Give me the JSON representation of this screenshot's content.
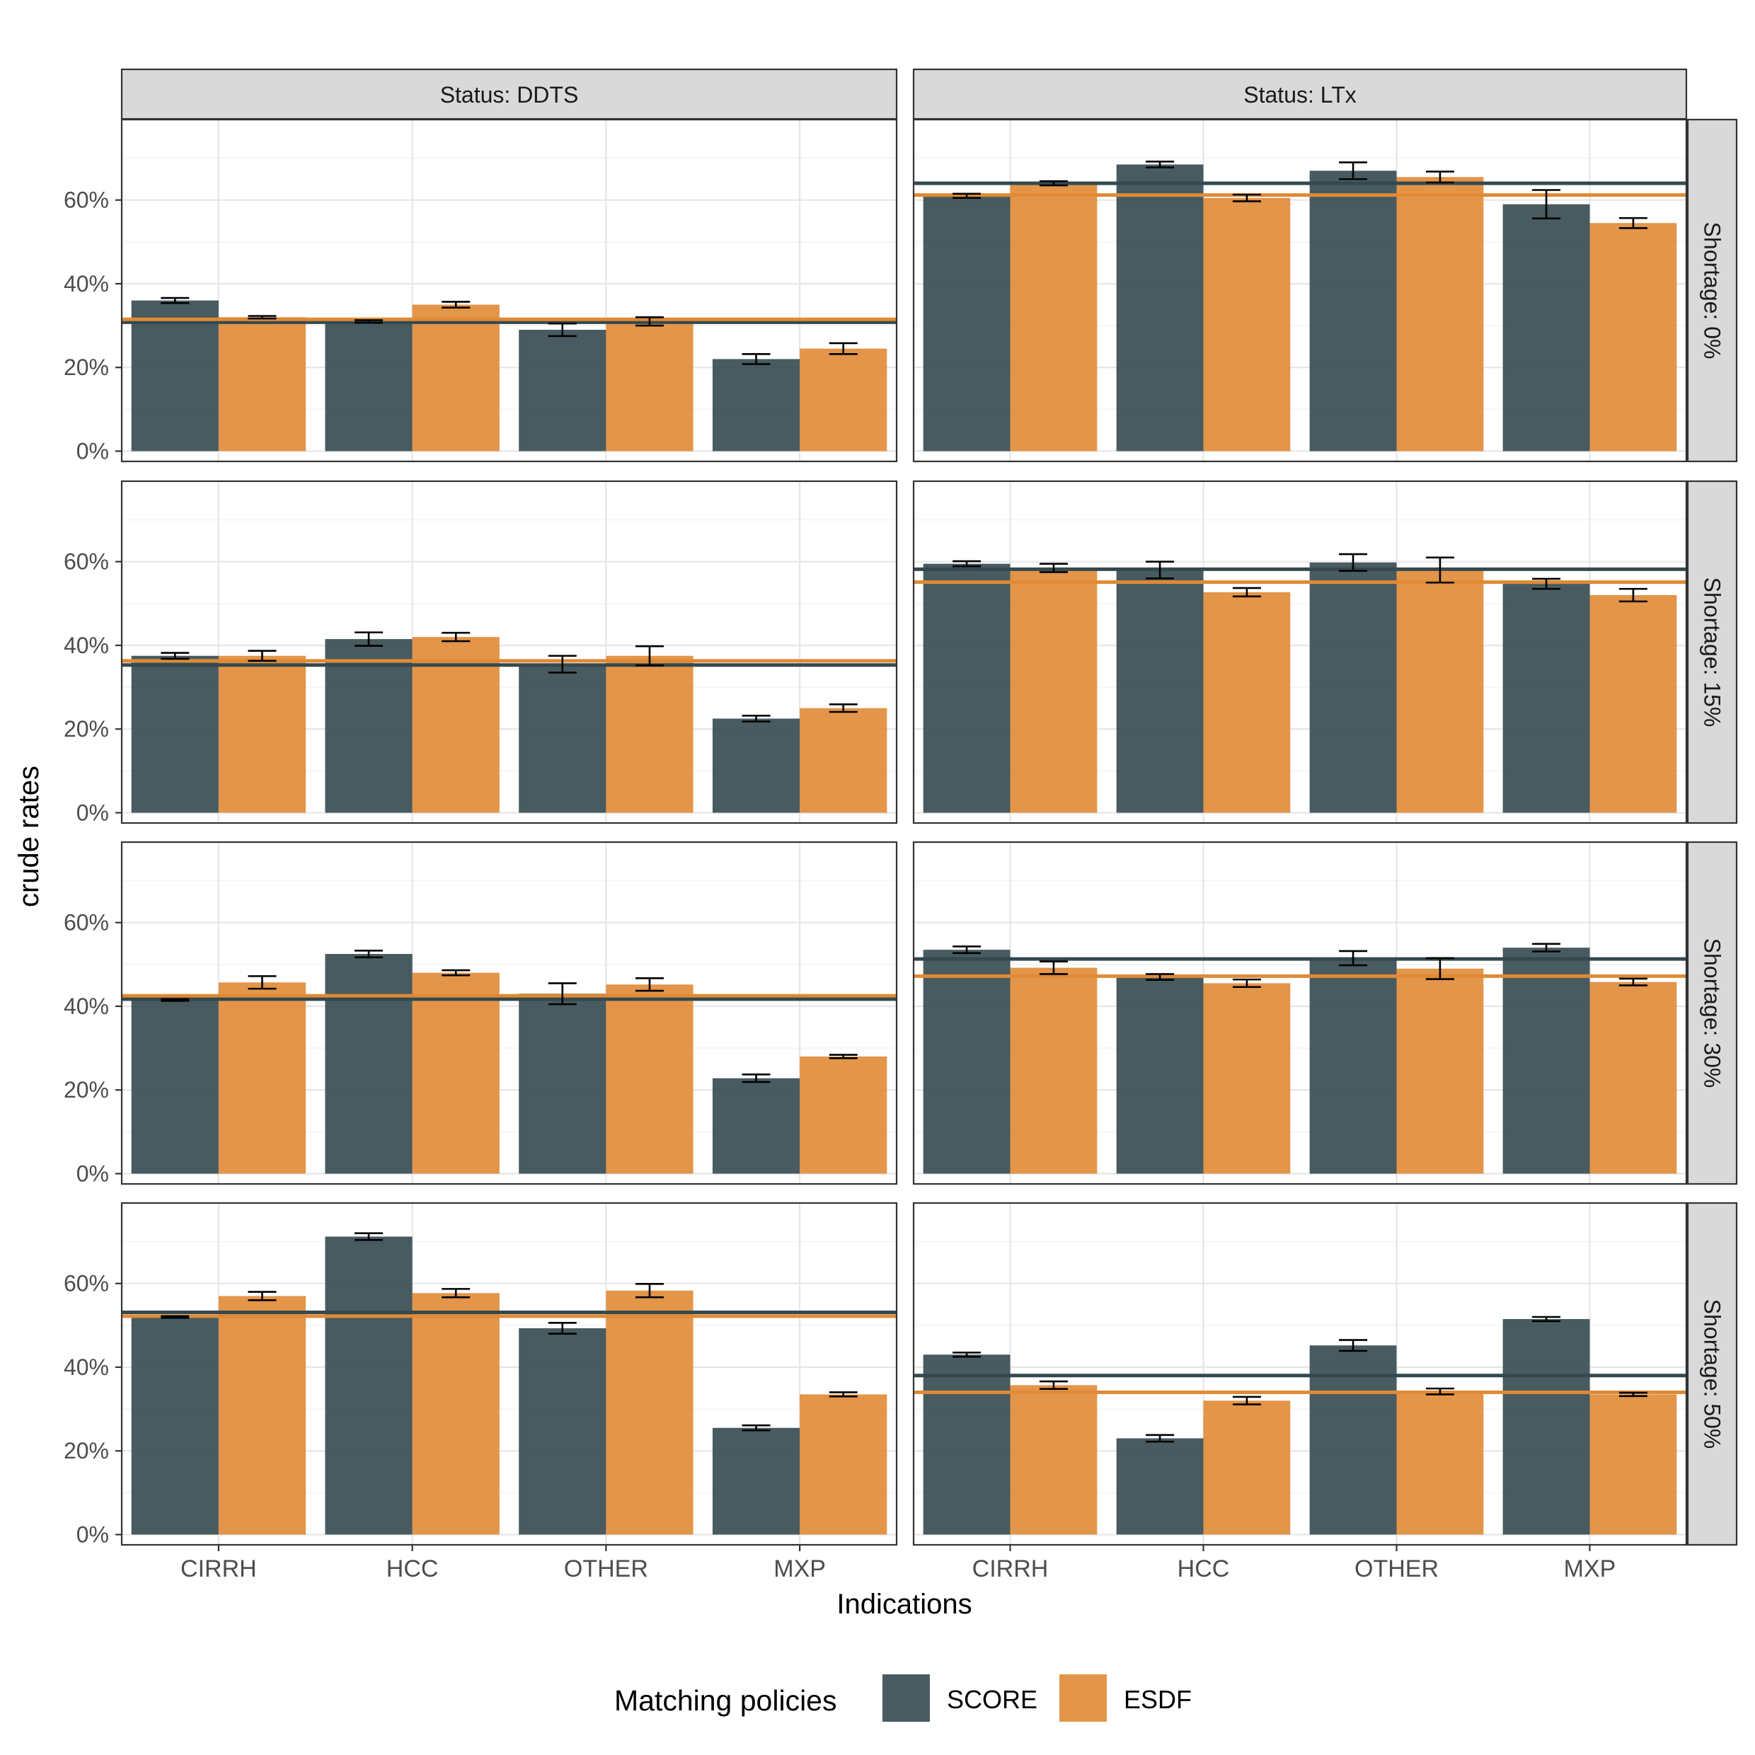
{
  "chart_data": {
    "type": "bar",
    "ylabel": "crude rates",
    "xlabel": "Indications",
    "categories": [
      "CIRRH",
      "HCC",
      "OTHER",
      "MXP"
    ],
    "ylim": [
      0,
      0.78
    ],
    "yticks": [
      0,
      0.2,
      0.4,
      0.6
    ],
    "ytick_labels": [
      "0%",
      "20%",
      "40%",
      "60%"
    ],
    "col_labels": [
      "Status: DDTS",
      "Status: LTx"
    ],
    "row_labels": [
      "Shortage: 0%",
      "Shortage: 15%",
      "Shortage: 30%",
      "Shortage: 50%"
    ],
    "legend": {
      "title": "Matching policies",
      "placement": "bottom",
      "entries": [
        {
          "name": "SCORE",
          "color": "#34494f"
        },
        {
          "name": "ESDF",
          "color": "#e08a35"
        }
      ]
    },
    "series_names": [
      "SCORE",
      "ESDF"
    ],
    "series_colors": [
      "#34494f",
      "#e08a35"
    ],
    "panels": [
      {
        "col": 0,
        "row": 0,
        "SCORE": {
          "values": [
            0.36,
            0.31,
            0.29,
            0.22
          ],
          "err": [
            0.006,
            0.003,
            0.015,
            0.012
          ]
        },
        "ESDF": {
          "values": [
            0.32,
            0.35,
            0.31,
            0.245
          ],
          "err": [
            0.003,
            0.007,
            0.01,
            0.013
          ]
        },
        "hlines": {
          "SCORE": 0.308,
          "ESDF": 0.315
        }
      },
      {
        "col": 1,
        "row": 0,
        "SCORE": {
          "values": [
            0.61,
            0.685,
            0.67,
            0.59
          ],
          "err": [
            0.005,
            0.007,
            0.02,
            0.034
          ]
        },
        "ESDF": {
          "values": [
            0.64,
            0.605,
            0.655,
            0.545
          ],
          "err": [
            0.005,
            0.008,
            0.013,
            0.012
          ]
        },
        "hlines": {
          "SCORE": 0.64,
          "ESDF": 0.612
        }
      },
      {
        "col": 0,
        "row": 1,
        "SCORE": {
          "values": [
            0.375,
            0.415,
            0.355,
            0.225
          ],
          "err": [
            0.007,
            0.016,
            0.02,
            0.007
          ]
        },
        "ESDF": {
          "values": [
            0.375,
            0.42,
            0.375,
            0.25
          ],
          "err": [
            0.012,
            0.01,
            0.023,
            0.009
          ]
        },
        "hlines": {
          "SCORE": 0.353,
          "ESDF": 0.363
        }
      },
      {
        "col": 1,
        "row": 1,
        "SCORE": {
          "values": [
            0.595,
            0.58,
            0.598,
            0.547
          ],
          "err": [
            0.006,
            0.02,
            0.02,
            0.012
          ]
        },
        "ESDF": {
          "values": [
            0.585,
            0.527,
            0.58,
            0.52
          ],
          "err": [
            0.01,
            0.01,
            0.03,
            0.015
          ]
        },
        "hlines": {
          "SCORE": 0.582,
          "ESDF": 0.551
        }
      },
      {
        "col": 0,
        "row": 2,
        "SCORE": {
          "values": [
            0.415,
            0.525,
            0.43,
            0.228
          ],
          "err": [
            0.002,
            0.008,
            0.025,
            0.009
          ]
        },
        "ESDF": {
          "values": [
            0.457,
            0.48,
            0.452,
            0.28
          ],
          "err": [
            0.015,
            0.006,
            0.015,
            0.004
          ]
        },
        "hlines": {
          "SCORE": 0.417,
          "ESDF": 0.425
        }
      },
      {
        "col": 1,
        "row": 2,
        "SCORE": {
          "values": [
            0.535,
            0.47,
            0.515,
            0.54
          ],
          "err": [
            0.008,
            0.007,
            0.017,
            0.009
          ]
        },
        "ESDF": {
          "values": [
            0.492,
            0.455,
            0.49,
            0.458
          ],
          "err": [
            0.015,
            0.009,
            0.025,
            0.008
          ]
        },
        "hlines": {
          "SCORE": 0.513,
          "ESDF": 0.472
        }
      },
      {
        "col": 0,
        "row": 3,
        "SCORE": {
          "values": [
            0.52,
            0.712,
            0.493,
            0.255
          ],
          "err": [
            0.002,
            0.008,
            0.013,
            0.006
          ]
        },
        "ESDF": {
          "values": [
            0.57,
            0.577,
            0.583,
            0.335
          ],
          "err": [
            0.01,
            0.01,
            0.016,
            0.005
          ]
        },
        "hlines": {
          "SCORE": 0.531,
          "ESDF": 0.522
        }
      },
      {
        "col": 1,
        "row": 3,
        "SCORE": {
          "values": [
            0.43,
            0.23,
            0.452,
            0.515
          ],
          "err": [
            0.005,
            0.008,
            0.013,
            0.005
          ]
        },
        "ESDF": {
          "values": [
            0.357,
            0.32,
            0.342,
            0.335
          ],
          "err": [
            0.009,
            0.009,
            0.007,
            0.004
          ]
        },
        "hlines": {
          "SCORE": 0.38,
          "ESDF": 0.34
        }
      }
    ]
  }
}
